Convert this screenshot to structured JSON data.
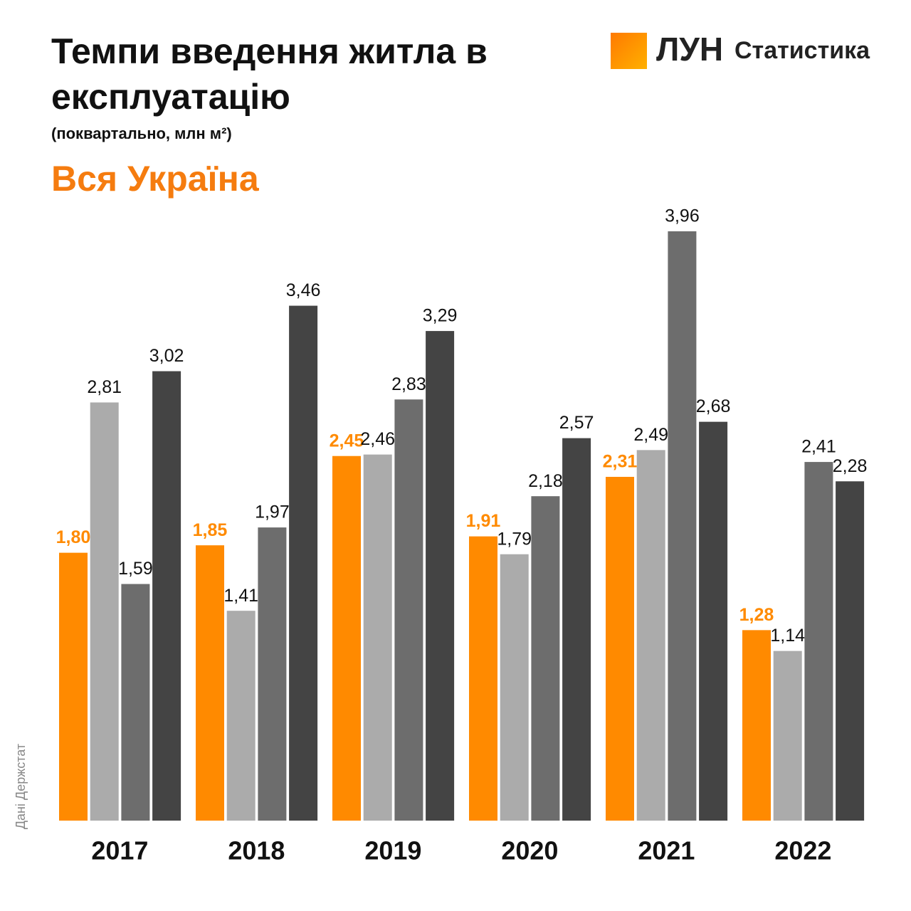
{
  "chart_data": {
    "type": "bar",
    "title": "Темпи введення житла в експлуатацію",
    "subtitle": "(поквартально, млн м²)",
    "region": "Вся Україна",
    "categories": [
      "2017",
      "2018",
      "2019",
      "2020",
      "2021",
      "2022"
    ],
    "series": [
      {
        "color": "#ff8a00",
        "values": [
          1.8,
          1.85,
          2.45,
          1.91,
          2.31,
          1.28
        ],
        "value_labels": [
          "1,80",
          "1,85",
          "2,45",
          "1,91",
          "2,31",
          "1,28"
        ]
      },
      {
        "color": "#ababab",
        "values": [
          2.81,
          1.41,
          2.46,
          1.79,
          2.49,
          1.14
        ],
        "value_labels": [
          "2,81",
          "1,41",
          "2,46",
          "1,79",
          "2,49",
          "1,14"
        ]
      },
      {
        "color": "#6d6d6d",
        "values": [
          1.59,
          1.97,
          2.83,
          2.18,
          3.96,
          2.41
        ],
        "value_labels": [
          "1,59",
          "1,97",
          "2,83",
          "2,18",
          "3,96",
          "2,41"
        ]
      },
      {
        "color": "#444444",
        "values": [
          3.02,
          3.46,
          3.29,
          2.57,
          2.68,
          2.28
        ],
        "value_labels": [
          "3,02",
          "3,46",
          "3,29",
          "2,57",
          "2,68",
          "2,28"
        ]
      }
    ]
  },
  "logo": {
    "brand": "ЛУН",
    "label": "Статистика"
  },
  "source": "Дані Держстат"
}
